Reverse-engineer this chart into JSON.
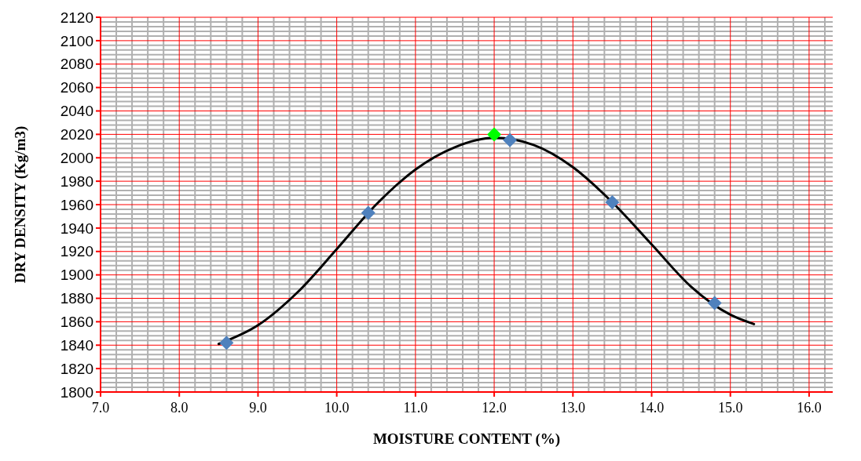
{
  "chart_data": {
    "type": "scatter",
    "xlabel": "MOISTURE  CONTENT (%)",
    "ylabel": "DRY DENSITY (Kg/m3)",
    "xlim": [
      7,
      16.3
    ],
    "xticks": [
      {
        "value": 7,
        "label": "7.0"
      },
      {
        "value": 8,
        "label": "8.0"
      },
      {
        "value": 9,
        "label": "9.0"
      },
      {
        "value": 10,
        "label": "10.0"
      },
      {
        "value": 11,
        "label": "11.0"
      },
      {
        "value": 12,
        "label": "12.0"
      },
      {
        "value": 13,
        "label": "13.0"
      },
      {
        "value": 14,
        "label": "14.0"
      },
      {
        "value": 15,
        "label": "15.0"
      },
      {
        "value": 16,
        "label": "16.0"
      }
    ],
    "ylim": [
      1800,
      2120
    ],
    "yticks": [
      1800,
      1820,
      1840,
      1860,
      1880,
      1900,
      1920,
      1940,
      1960,
      1980,
      2000,
      2020,
      2040,
      2060,
      2080,
      2100,
      2120
    ],
    "grid": true,
    "marker": "diamond",
    "series": [
      {
        "type": "line",
        "color": "#000000",
        "marker": "none",
        "x": [
          8.5,
          9.0,
          9.5,
          10.0,
          10.5,
          11.0,
          11.5,
          12.0,
          12.5,
          13.0,
          13.5,
          14.0,
          14.5,
          15.0,
          15.3
        ],
        "values": [
          1841,
          1857,
          1885,
          1922,
          1960,
          1990,
          2009,
          2017,
          2011,
          1992,
          1962,
          1926,
          1890,
          1866,
          1858
        ]
      },
      {
        "color": "#4f81bd",
        "x": [
          8.6,
          10.4,
          12.2,
          13.5,
          14.8
        ],
        "values": [
          1842,
          1953,
          2015,
          1962,
          1876
        ]
      },
      {
        "color": "#00ff00",
        "x": [
          12.0
        ],
        "values": [
          2020
        ]
      }
    ]
  }
}
